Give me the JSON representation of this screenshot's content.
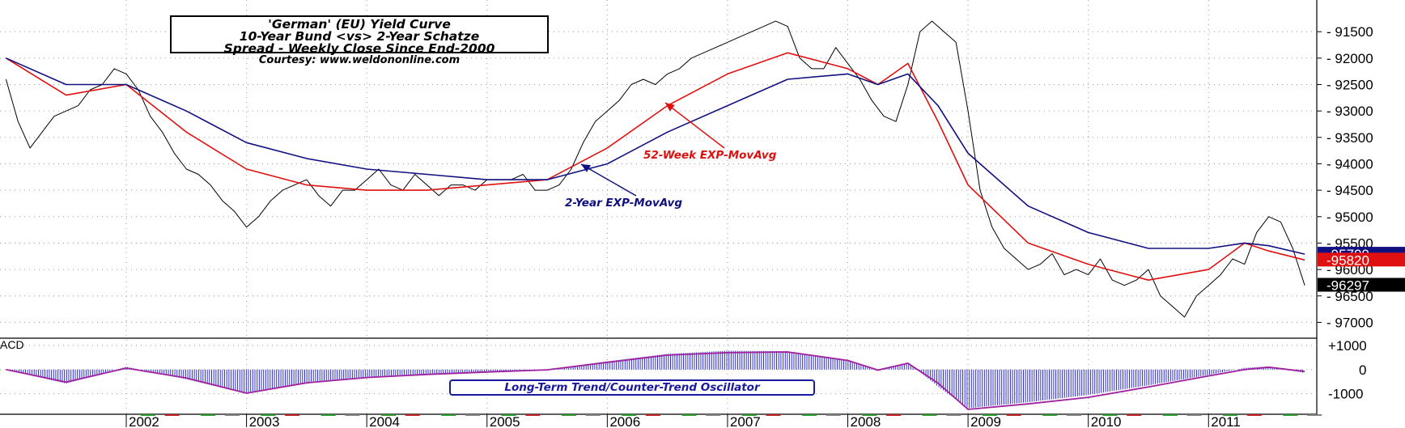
{
  "title_lines": [
    "'German' (EU) Yield Curve",
    "10-Year Bund <vs> 2-Year Schatze",
    "Spread - Weekly Close Since End-2000"
  ],
  "courtesy": "Courtesy: www.weldononline.com",
  "annotations": {
    "ema52": "52-Week EXP-MovAvg",
    "ema2y": "2-Year EXP-MovAvg"
  },
  "macd_label": "ACD",
  "oscillator_label": "Long-Term Trend/Counter-Trend Oscillator",
  "colors": {
    "price": "#000000",
    "ema52": "#e01010",
    "ema2y": "#101080",
    "histogram": "#2a2ad0",
    "signal": "#a020a0"
  },
  "chart_data": {
    "type": "line",
    "x_label": "",
    "y_label": "",
    "x_ticks": [
      "2002",
      "2003",
      "2004",
      "2005",
      "2006",
      "2007",
      "2008",
      "2009",
      "2010",
      "2011"
    ],
    "x_range": [
      2000.95,
      2011.9
    ],
    "y_axis": {
      "inverted": true,
      "ticks": [
        91500,
        92000,
        92500,
        93000,
        93500,
        94000,
        94500,
        95000,
        95500,
        96000,
        96500,
        97000
      ],
      "range": [
        90900,
        97300
      ]
    },
    "last_value_tags": [
      {
        "series": "2-Year EXP-MovAvg",
        "value": "95709"
      },
      {
        "series": "52-Week EXP-MovAvg",
        "value": "95820"
      },
      {
        "series": "Spread",
        "value": "96297"
      }
    ],
    "series": [
      {
        "name": "Spread",
        "x": [
          2001.0,
          2001.1,
          2001.2,
          2001.3,
          2001.4,
          2001.5,
          2001.6,
          2001.7,
          2001.8,
          2001.9,
          2002.0,
          2002.1,
          2002.2,
          2002.3,
          2002.4,
          2002.5,
          2002.6,
          2002.7,
          2002.8,
          2002.9,
          2003.0,
          2003.1,
          2003.2,
          2003.3,
          2003.4,
          2003.5,
          2003.6,
          2003.7,
          2003.8,
          2003.9,
          2004.0,
          2004.1,
          2004.2,
          2004.3,
          2004.4,
          2004.5,
          2004.6,
          2004.7,
          2004.8,
          2004.9,
          2005.0,
          2005.1,
          2005.2,
          2005.3,
          2005.4,
          2005.5,
          2005.6,
          2005.7,
          2005.8,
          2005.9,
          2006.0,
          2006.1,
          2006.2,
          2006.3,
          2006.4,
          2006.5,
          2006.6,
          2006.7,
          2006.8,
          2006.9,
          2007.0,
          2007.1,
          2007.2,
          2007.3,
          2007.4,
          2007.5,
          2007.6,
          2007.7,
          2007.8,
          2007.9,
          2008.0,
          2008.1,
          2008.2,
          2008.3,
          2008.4,
          2008.5,
          2008.6,
          2008.7,
          2008.8,
          2008.9,
          2009.0,
          2009.1,
          2009.2,
          2009.3,
          2009.4,
          2009.5,
          2009.6,
          2009.7,
          2009.8,
          2009.9,
          2010.0,
          2010.1,
          2010.2,
          2010.3,
          2010.4,
          2010.5,
          2010.6,
          2010.7,
          2010.8,
          2010.9,
          2011.0,
          2011.1,
          2011.2,
          2011.3,
          2011.4,
          2011.5,
          2011.6,
          2011.7,
          2011.8
        ],
        "values": [
          92400,
          93200,
          93700,
          93400,
          93100,
          93000,
          92900,
          92600,
          92500,
          92200,
          92300,
          92600,
          93100,
          93400,
          93800,
          94100,
          94200,
          94400,
          94700,
          94900,
          95200,
          95000,
          94700,
          94500,
          94400,
          94300,
          94600,
          94800,
          94500,
          94500,
          94300,
          94100,
          94400,
          94500,
          94200,
          94400,
          94600,
          94400,
          94400,
          94500,
          94300,
          94300,
          94300,
          94200,
          94500,
          94500,
          94400,
          94100,
          93600,
          93200,
          93000,
          92800,
          92500,
          92400,
          92500,
          92300,
          92200,
          92000,
          91900,
          91800,
          91700,
          91600,
          91500,
          91400,
          91300,
          91400,
          92000,
          92200,
          92200,
          91800,
          92100,
          92400,
          92800,
          93100,
          93200,
          92500,
          91500,
          91300,
          91500,
          91700,
          93000,
          94500,
          95200,
          95600,
          95800,
          96000,
          95900,
          95700,
          96100,
          96000,
          96100,
          95800,
          96200,
          96300,
          96200,
          96000,
          96500,
          96700,
          96900,
          96500,
          96300,
          96100,
          95800,
          95900,
          95300,
          95000,
          95100,
          95600,
          96300
        ]
      },
      {
        "name": "52-Week EXP-MovAvg",
        "x": [
          2001.0,
          2001.5,
          2002.0,
          2002.5,
          2003.0,
          2003.5,
          2004.0,
          2004.5,
          2005.0,
          2005.5,
          2006.0,
          2006.5,
          2007.0,
          2007.5,
          2008.0,
          2008.25,
          2008.5,
          2008.75,
          2009.0,
          2009.5,
          2010.0,
          2010.5,
          2011.0,
          2011.3,
          2011.5,
          2011.8
        ],
        "values": [
          92000,
          92700,
          92500,
          93400,
          94100,
          94400,
          94500,
          94500,
          94400,
          94300,
          93700,
          92900,
          92300,
          91900,
          92200,
          92500,
          92100,
          93200,
          94400,
          95500,
          95900,
          96200,
          96000,
          95500,
          95650,
          95820
        ]
      },
      {
        "name": "2-Year EXP-MovAvg",
        "x": [
          2001.0,
          2001.5,
          2002.0,
          2002.5,
          2003.0,
          2003.5,
          2004.0,
          2004.5,
          2005.0,
          2005.5,
          2006.0,
          2006.5,
          2007.0,
          2007.5,
          2008.0,
          2008.25,
          2008.5,
          2008.75,
          2009.0,
          2009.5,
          2010.0,
          2010.5,
          2011.0,
          2011.3,
          2011.5,
          2011.8
        ],
        "values": [
          92000,
          92500,
          92500,
          93000,
          93600,
          93900,
          94100,
          94200,
          94300,
          94300,
          94000,
          93400,
          92900,
          92400,
          92300,
          92500,
          92300,
          92900,
          93800,
          94800,
          95300,
          95600,
          95600,
          95500,
          95550,
          95709
        ]
      }
    ],
    "macd": {
      "y_ticks": [
        "+1000",
        "0",
        "-1000"
      ],
      "y_range": [
        -1850,
        1300
      ],
      "x": [
        2001.0,
        2001.5,
        2002.0,
        2002.5,
        2003.0,
        2003.5,
        2004.0,
        2004.5,
        2005.0,
        2005.5,
        2006.0,
        2006.5,
        2007.0,
        2007.5,
        2008.0,
        2008.25,
        2008.5,
        2008.75,
        2009.0,
        2009.5,
        2010.0,
        2010.5,
        2011.0,
        2011.3,
        2011.5,
        2011.8
      ],
      "histogram": [
        0,
        -580,
        120,
        -400,
        -1000,
        -520,
        -350,
        -220,
        -90,
        0,
        340,
        650,
        780,
        760,
        360,
        -60,
        300,
        -700,
        -1600,
        -1350,
        -1050,
        -650,
        -220,
        70,
        130,
        -140
      ],
      "signal": [
        0,
        -520,
        60,
        -350,
        -980,
        -550,
        -330,
        -200,
        -100,
        -10,
        300,
        600,
        700,
        730,
        380,
        -20,
        260,
        -560,
        -1650,
        -1420,
        -1150,
        -720,
        -260,
        0,
        100,
        -80
      ]
    }
  }
}
